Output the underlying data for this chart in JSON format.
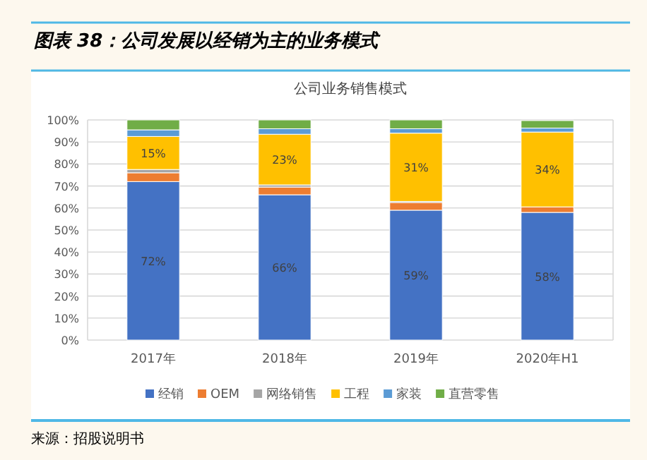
{
  "chart_data": {
    "type": "bar",
    "stacked": true,
    "title": "图表 38：公司发展以经销为主的业务模式",
    "subtitle": "公司业务销售模式",
    "annotations": [
      "来源：招股说明书"
    ],
    "categories": [
      "2017年",
      "2018年",
      "2019年",
      "2020年H1"
    ],
    "series": [
      {
        "name": "经销",
        "color": "#4472c4",
        "values": [
          72,
          66,
          59,
          58
        ],
        "value_labels": [
          "72%",
          "66%",
          "59%",
          "58%"
        ]
      },
      {
        "name": "OEM",
        "color": "#ed7d31",
        "values": [
          4,
          3.5,
          3.5,
          2.5
        ]
      },
      {
        "name": "网络销售",
        "color": "#a5a5a5",
        "values": [
          1.5,
          1,
          0.5,
          null
        ]
      },
      {
        "name": "工程",
        "color": "#ffc000",
        "values": [
          15,
          23,
          31,
          34
        ],
        "value_labels": [
          "15%",
          "23%",
          "31%",
          "34%"
        ]
      },
      {
        "name": "家装",
        "color": "#5b9bd5",
        "values": [
          3,
          2.5,
          2,
          1.8
        ]
      },
      {
        "name": "直营零售",
        "color": "#70ad47",
        "values": [
          4.5,
          4,
          4,
          3.4
        ]
      }
    ],
    "ylim": [
      0,
      100
    ],
    "yticks": [
      {
        "value": 0,
        "label": "0%"
      },
      {
        "value": 10,
        "label": "10%"
      },
      {
        "value": 20,
        "label": "20%"
      },
      {
        "value": 30,
        "label": "30%"
      },
      {
        "value": 40,
        "label": "40%"
      },
      {
        "value": 50,
        "label": "50%"
      },
      {
        "value": 60,
        "label": "60%"
      },
      {
        "value": 70,
        "label": "70%"
      },
      {
        "value": 80,
        "label": "80%"
      },
      {
        "value": 90,
        "label": "90%"
      },
      {
        "value": 100,
        "label": "100%"
      }
    ],
    "grid": "y",
    "legend": "bottom"
  }
}
